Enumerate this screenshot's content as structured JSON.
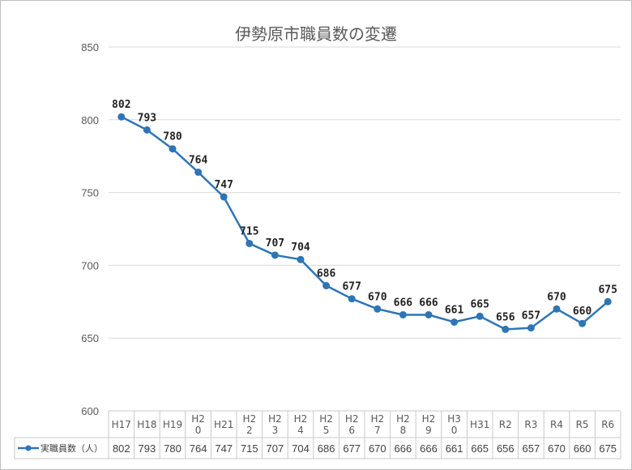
{
  "chart_data": {
    "type": "line",
    "title": "伊勢原市職員数の変遷",
    "categories": [
      "H17",
      "H18",
      "H19",
      "H20",
      "H21",
      "H22",
      "H23",
      "H24",
      "H25",
      "H26",
      "H27",
      "H28",
      "H29",
      "H30",
      "H31",
      "R2",
      "R3",
      "R4",
      "R5",
      "R6"
    ],
    "category_display": [
      [
        "H17"
      ],
      [
        "H18"
      ],
      [
        "H19"
      ],
      [
        "H2",
        "0"
      ],
      [
        "H21"
      ],
      [
        "H2",
        "2"
      ],
      [
        "H2",
        "3"
      ],
      [
        "H2",
        "4"
      ],
      [
        "H2",
        "5"
      ],
      [
        "H2",
        "6"
      ],
      [
        "H2",
        "7"
      ],
      [
        "H2",
        "8"
      ],
      [
        "H2",
        "9"
      ],
      [
        "H3",
        "0"
      ],
      [
        "H31"
      ],
      [
        "R2"
      ],
      [
        "R3"
      ],
      [
        "R4"
      ],
      [
        "R5"
      ],
      [
        "R6"
      ]
    ],
    "series": [
      {
        "name": "実職員数（人）",
        "values": [
          802,
          793,
          780,
          764,
          747,
          715,
          707,
          704,
          686,
          677,
          670,
          666,
          666,
          661,
          665,
          656,
          657,
          670,
          660,
          675
        ]
      }
    ],
    "ylim": [
      600,
      850
    ],
    "yticks": [
      600,
      650,
      700,
      750,
      800,
      850
    ],
    "grid": true,
    "data_table": true,
    "line_color": "#2e75b6"
  }
}
